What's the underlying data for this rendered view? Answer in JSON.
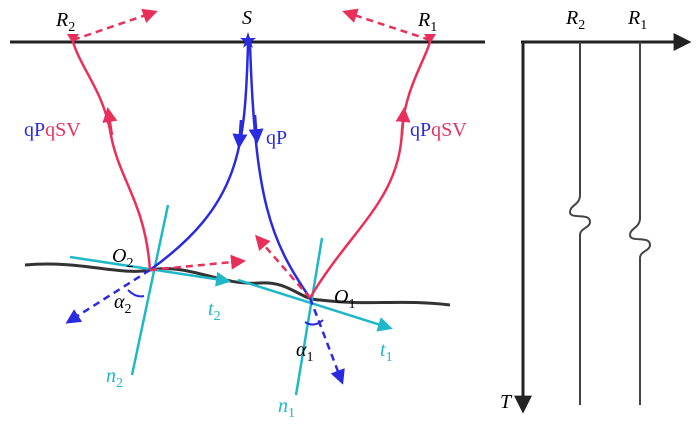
{
  "source": "S",
  "receivers": [
    {
      "main": "R",
      "sub": "2"
    },
    {
      "main": "R",
      "sub": "1"
    }
  ],
  "rays": {
    "incident": "qP",
    "converted": [
      "qP",
      "qSV"
    ]
  },
  "reflection_points": [
    {
      "main": "O",
      "sub": "2"
    },
    {
      "main": "O",
      "sub": "1"
    }
  ],
  "angles": [
    {
      "main": "α",
      "sub": "2"
    },
    {
      "main": "α",
      "sub": "1"
    }
  ],
  "tangents": [
    {
      "main": "t",
      "sub": "2"
    },
    {
      "main": "t",
      "sub": "1"
    }
  ],
  "normals": [
    {
      "main": "n",
      "sub": "2"
    },
    {
      "main": "n",
      "sub": "1"
    }
  ],
  "section": {
    "traces": [
      {
        "main": "R",
        "sub": "2"
      },
      {
        "main": "R",
        "sub": "1"
      }
    ],
    "time_axis": "T"
  }
}
